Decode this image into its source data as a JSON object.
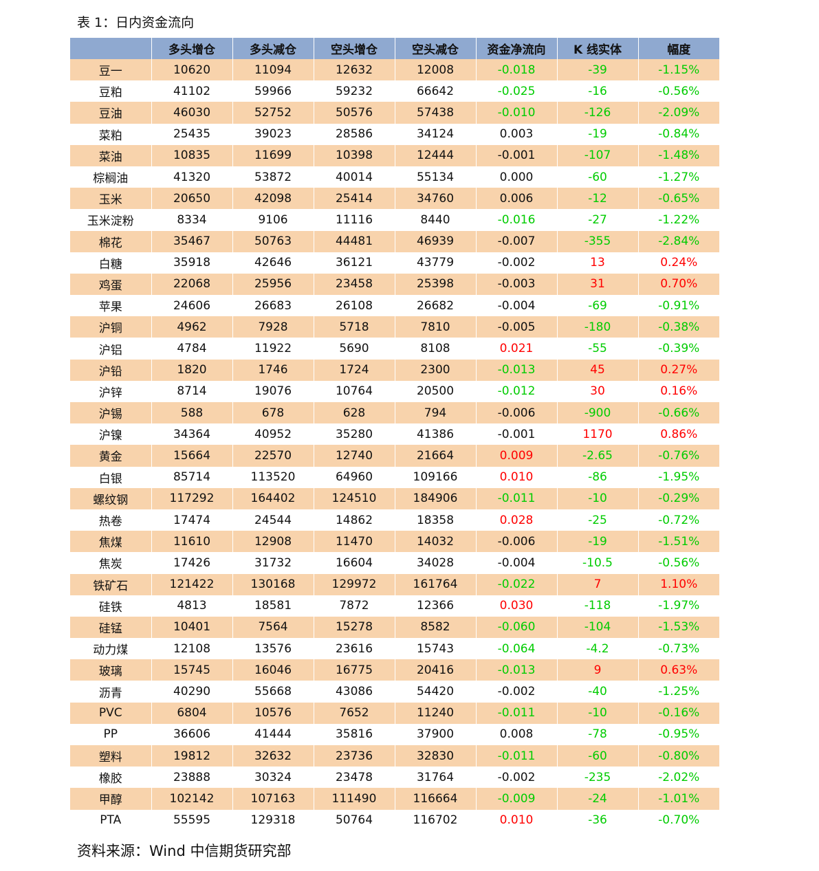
{
  "caption": "表 1：日内资金流向",
  "source": "资料来源：Wind  中信期货研究部",
  "colors": {
    "header_bg": "#8fa9d0",
    "stripe_bg": "#f8d3ac",
    "negative": "#00cc00",
    "positive": "#ff0000"
  },
  "table": {
    "headers": [
      "",
      "多头增仓",
      "多头减仓",
      "空头增仓",
      "空头减仓",
      "资金净流向",
      "K 线实体",
      "幅度"
    ],
    "rows": [
      [
        "豆一",
        "10620",
        "11094",
        "12632",
        "12008",
        "-0.018",
        "-39",
        "-1.15%"
      ],
      [
        "豆粕",
        "41102",
        "59966",
        "59232",
        "66642",
        "-0.025",
        "-16",
        "-0.56%"
      ],
      [
        "豆油",
        "46030",
        "52752",
        "50576",
        "57438",
        "-0.010",
        "-126",
        "-2.09%"
      ],
      [
        "菜粕",
        "25435",
        "39023",
        "28586",
        "34124",
        "0.003",
        "-19",
        "-0.84%"
      ],
      [
        "菜油",
        "10835",
        "11699",
        "10398",
        "12444",
        "-0.001",
        "-107",
        "-1.48%"
      ],
      [
        "棕榈油",
        "41320",
        "53872",
        "40014",
        "55134",
        "0.000",
        "-60",
        "-1.27%"
      ],
      [
        "玉米",
        "20650",
        "42098",
        "25414",
        "34760",
        "0.006",
        "-12",
        "-0.65%"
      ],
      [
        "玉米淀粉",
        "8334",
        "9106",
        "11116",
        "8440",
        "-0.016",
        "-27",
        "-1.22%"
      ],
      [
        "棉花",
        "35467",
        "50763",
        "44481",
        "46939",
        "-0.007",
        "-355",
        "-2.84%"
      ],
      [
        "白糖",
        "35918",
        "42646",
        "36121",
        "43779",
        "-0.002",
        "13",
        "0.24%"
      ],
      [
        "鸡蛋",
        "22068",
        "25956",
        "23458",
        "25398",
        "-0.003",
        "31",
        "0.70%"
      ],
      [
        "苹果",
        "24606",
        "26683",
        "26108",
        "26682",
        "-0.004",
        "-69",
        "-0.91%"
      ],
      [
        "沪铜",
        "4962",
        "7928",
        "5718",
        "7810",
        "-0.005",
        "-180",
        "-0.38%"
      ],
      [
        "沪铝",
        "4784",
        "11922",
        "5690",
        "8108",
        "0.021",
        "-55",
        "-0.39%"
      ],
      [
        "沪铅",
        "1820",
        "1746",
        "1724",
        "2300",
        "-0.013",
        "45",
        "0.27%"
      ],
      [
        "沪锌",
        "8714",
        "19076",
        "10764",
        "20500",
        "-0.012",
        "30",
        "0.16%"
      ],
      [
        "沪锡",
        "588",
        "678",
        "628",
        "794",
        "-0.006",
        "-900",
        "-0.66%"
      ],
      [
        "沪镍",
        "34364",
        "40952",
        "35280",
        "41386",
        "-0.001",
        "1170",
        "0.86%"
      ],
      [
        "黄金",
        "15664",
        "22570",
        "12740",
        "21664",
        "0.009",
        "-2.65",
        "-0.76%"
      ],
      [
        "白银",
        "85714",
        "113520",
        "64960",
        "109166",
        "0.010",
        "-86",
        "-1.95%"
      ],
      [
        "螺纹钢",
        "117292",
        "164402",
        "124510",
        "184906",
        "-0.011",
        "-10",
        "-0.29%"
      ],
      [
        "热卷",
        "17474",
        "24544",
        "14862",
        "18358",
        "0.028",
        "-25",
        "-0.72%"
      ],
      [
        "焦煤",
        "11610",
        "12908",
        "11470",
        "14032",
        "-0.006",
        "-19",
        "-1.51%"
      ],
      [
        "焦炭",
        "17426",
        "31732",
        "16604",
        "34028",
        "-0.004",
        "-10.5",
        "-0.56%"
      ],
      [
        "铁矿石",
        "121422",
        "130168",
        "129972",
        "161764",
        "-0.022",
        "7",
        "1.10%"
      ],
      [
        "硅铁",
        "4813",
        "18581",
        "7872",
        "12366",
        "0.030",
        "-118",
        "-1.97%"
      ],
      [
        "硅锰",
        "10401",
        "7564",
        "15278",
        "8582",
        "-0.060",
        "-104",
        "-1.53%"
      ],
      [
        "动力煤",
        "12108",
        "13576",
        "23616",
        "15743",
        "-0.064",
        "-4.2",
        "-0.73%"
      ],
      [
        "玻璃",
        "15745",
        "16046",
        "16775",
        "20416",
        "-0.013",
        "9",
        "0.63%"
      ],
      [
        "沥青",
        "40290",
        "55668",
        "43086",
        "54420",
        "-0.002",
        "-40",
        "-1.25%"
      ],
      [
        "PVC",
        "6804",
        "10576",
        "7652",
        "11240",
        "-0.011",
        "-10",
        "-0.16%"
      ],
      [
        "PP",
        "36606",
        "41444",
        "35816",
        "37900",
        "0.008",
        "-78",
        "-0.95%"
      ],
      [
        "塑料",
        "19812",
        "32632",
        "23736",
        "32830",
        "-0.011",
        "-60",
        "-0.80%"
      ],
      [
        "橡胶",
        "23888",
        "30324",
        "23478",
        "31764",
        "-0.002",
        "-235",
        "-2.02%"
      ],
      [
        "甲醇",
        "102142",
        "107163",
        "111490",
        "116664",
        "-0.009",
        "-24",
        "-1.01%"
      ],
      [
        "PTA",
        "55595",
        "129318",
        "50764",
        "116702",
        "0.010",
        "-36",
        "-0.70%"
      ]
    ],
    "flow_colors": [
      "neg",
      "neg",
      "neg",
      "flat",
      "flat",
      "flat",
      "flat",
      "neg",
      "flat",
      "flat",
      "flat",
      "flat",
      "flat",
      "pos",
      "neg",
      "neg",
      "flat",
      "flat",
      "pos",
      "pos",
      "neg",
      "pos",
      "flat",
      "flat",
      "neg",
      "pos",
      "neg",
      "neg",
      "neg",
      "flat",
      "neg",
      "flat",
      "neg",
      "flat",
      "neg",
      "pos"
    ]
  }
}
